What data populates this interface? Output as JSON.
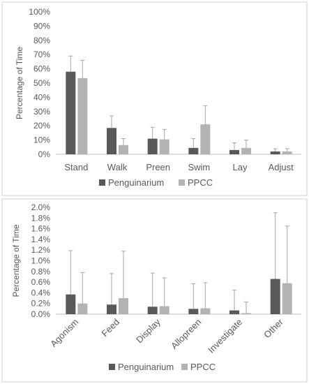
{
  "colors": {
    "Penguinarium": "#595959",
    "PPCC": "#b3b3b3",
    "axis": "#bfbfbf",
    "text": "#595959",
    "errorbar": "#a6a6a6"
  },
  "chart_data": [
    {
      "type": "bar",
      "title": "",
      "ylabel": "Percentage of Time",
      "xlabel": "",
      "ylim": [
        0,
        100
      ],
      "ytick_labels": [
        "0%",
        "10%",
        "20%",
        "30%",
        "40%",
        "50%",
        "60%",
        "70%",
        "80%",
        "90%",
        "100%"
      ],
      "categories": [
        "Stand",
        "Walk",
        "Preen",
        "Swim",
        "Lay",
        "Adjust"
      ],
      "legend_position": "bottom",
      "series": [
        {
          "name": "Penguinarium",
          "values": [
            58,
            18.5,
            11,
            4.5,
            3,
            2
          ],
          "errors": [
            11,
            8.5,
            8,
            6.5,
            5,
            1.8
          ]
        },
        {
          "name": "PPCC",
          "values": [
            53.5,
            6.5,
            10.5,
            21,
            4.5,
            2
          ],
          "errors": [
            12.5,
            4.5,
            7,
            13,
            5.5,
            2
          ]
        }
      ]
    },
    {
      "type": "bar",
      "title": "",
      "ylabel": "Percentage of Time",
      "xlabel": "",
      "ylim": [
        0,
        2
      ],
      "ytick_labels": [
        "0.0%",
        "0.2%",
        "0.4%",
        "0.6%",
        "0.8%",
        "1.0%",
        "1.2%",
        "1.4%",
        "1.6%",
        "1.8%",
        "2.0%"
      ],
      "categories": [
        "Agonism",
        "Feed",
        "Display",
        "Allopreen",
        "Investigate",
        "Other"
      ],
      "legend_position": "bottom",
      "series": [
        {
          "name": "Penguinarium",
          "values": [
            0.37,
            0.18,
            0.14,
            0.1,
            0.07,
            0.66
          ],
          "errors": [
            0.82,
            0.58,
            0.63,
            0.47,
            0.38,
            1.24
          ]
        },
        {
          "name": "PPCC",
          "values": [
            0.2,
            0.3,
            0.15,
            0.11,
            0.02,
            0.58
          ],
          "errors": [
            0.58,
            0.88,
            0.53,
            0.48,
            0.21,
            1.07
          ]
        }
      ]
    }
  ]
}
